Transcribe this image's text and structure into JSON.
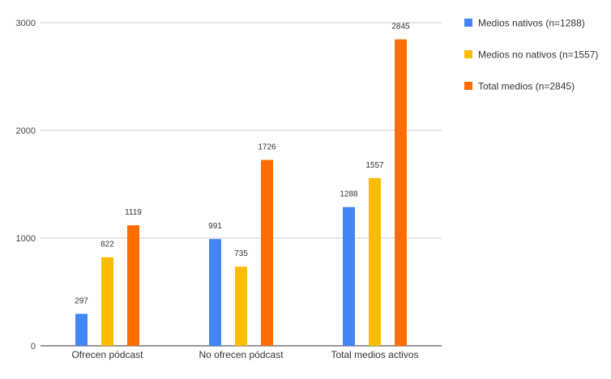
{
  "chart_data": {
    "type": "bar",
    "title": "",
    "xlabel": "",
    "ylabel": "",
    "categories": [
      "Ofrecen pódcast",
      "No ofrecen pódcast",
      "Total medios activos"
    ],
    "series": [
      {
        "name": "Medios nativos (n=1288)",
        "color": "#4285f4",
        "values": [
          297,
          991,
          1288
        ]
      },
      {
        "name": "Medios no nativos (n=1557)",
        "color": "#fbbc04",
        "values": [
          822,
          735,
          1557
        ]
      },
      {
        "name": "Total medios (n=2845)",
        "color": "#ff6d01",
        "values": [
          1119,
          1726,
          2845
        ]
      }
    ],
    "ylim": [
      0,
      3000
    ],
    "yticks": [
      0,
      1000,
      2000,
      3000
    ],
    "grid": true,
    "legend": "top-right",
    "data_labels": true
  }
}
